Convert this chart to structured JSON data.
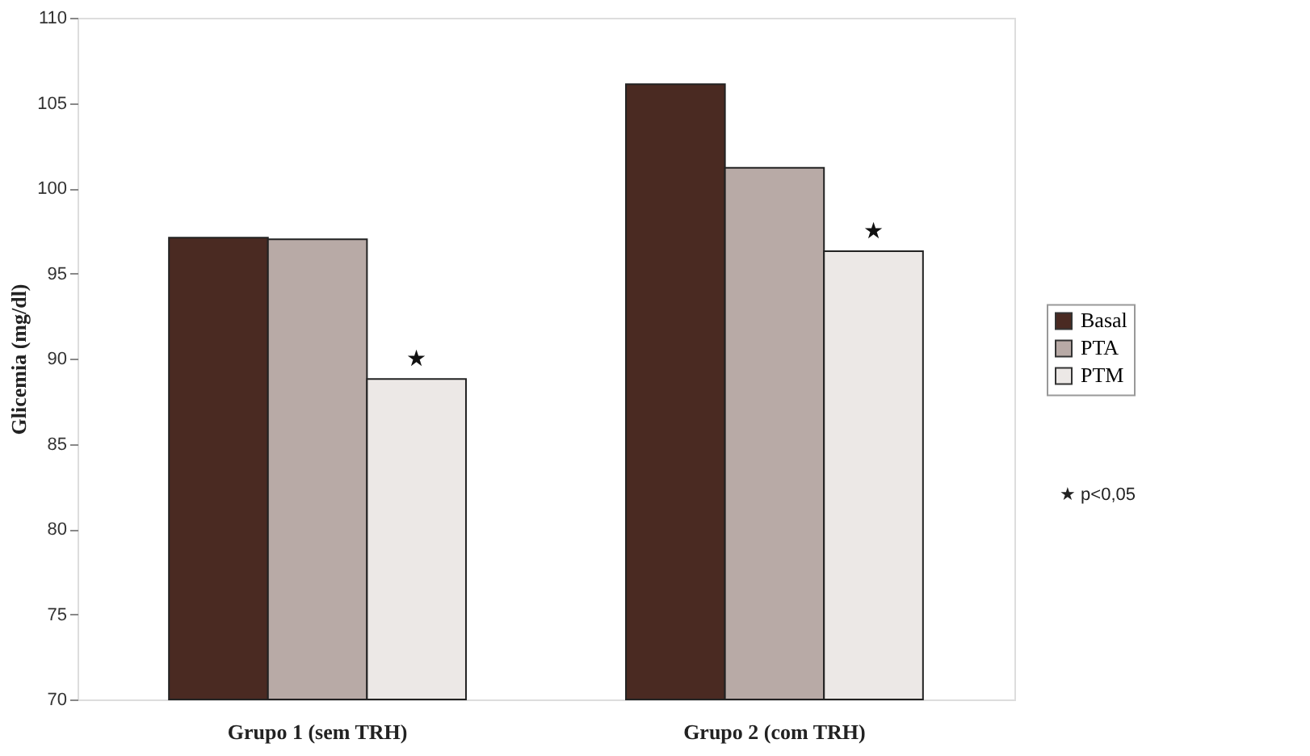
{
  "chart_data": {
    "type": "bar",
    "ylabel": "Glicemia (mg/dl)",
    "categories": [
      "Grupo 1 (sem TRH)",
      "Grupo 2 (com TRH)"
    ],
    "series": [
      {
        "name": "Basal",
        "color": "#4a2a22",
        "values": [
          97.1,
          106.1
        ]
      },
      {
        "name": "PTA",
        "color": "#b8aaa6",
        "values": [
          97.0,
          101.2
        ]
      },
      {
        "name": "PTM",
        "color": "#ece8e6",
        "values": [
          88.8,
          96.3
        ]
      }
    ],
    "ylim": [
      70,
      110
    ],
    "yticks": [
      70,
      75,
      80,
      85,
      90,
      95,
      100,
      105,
      110
    ],
    "grid": false,
    "legend": "right",
    "annotations": [
      "★",
      "★",
      "★ p<0,05"
    ]
  }
}
